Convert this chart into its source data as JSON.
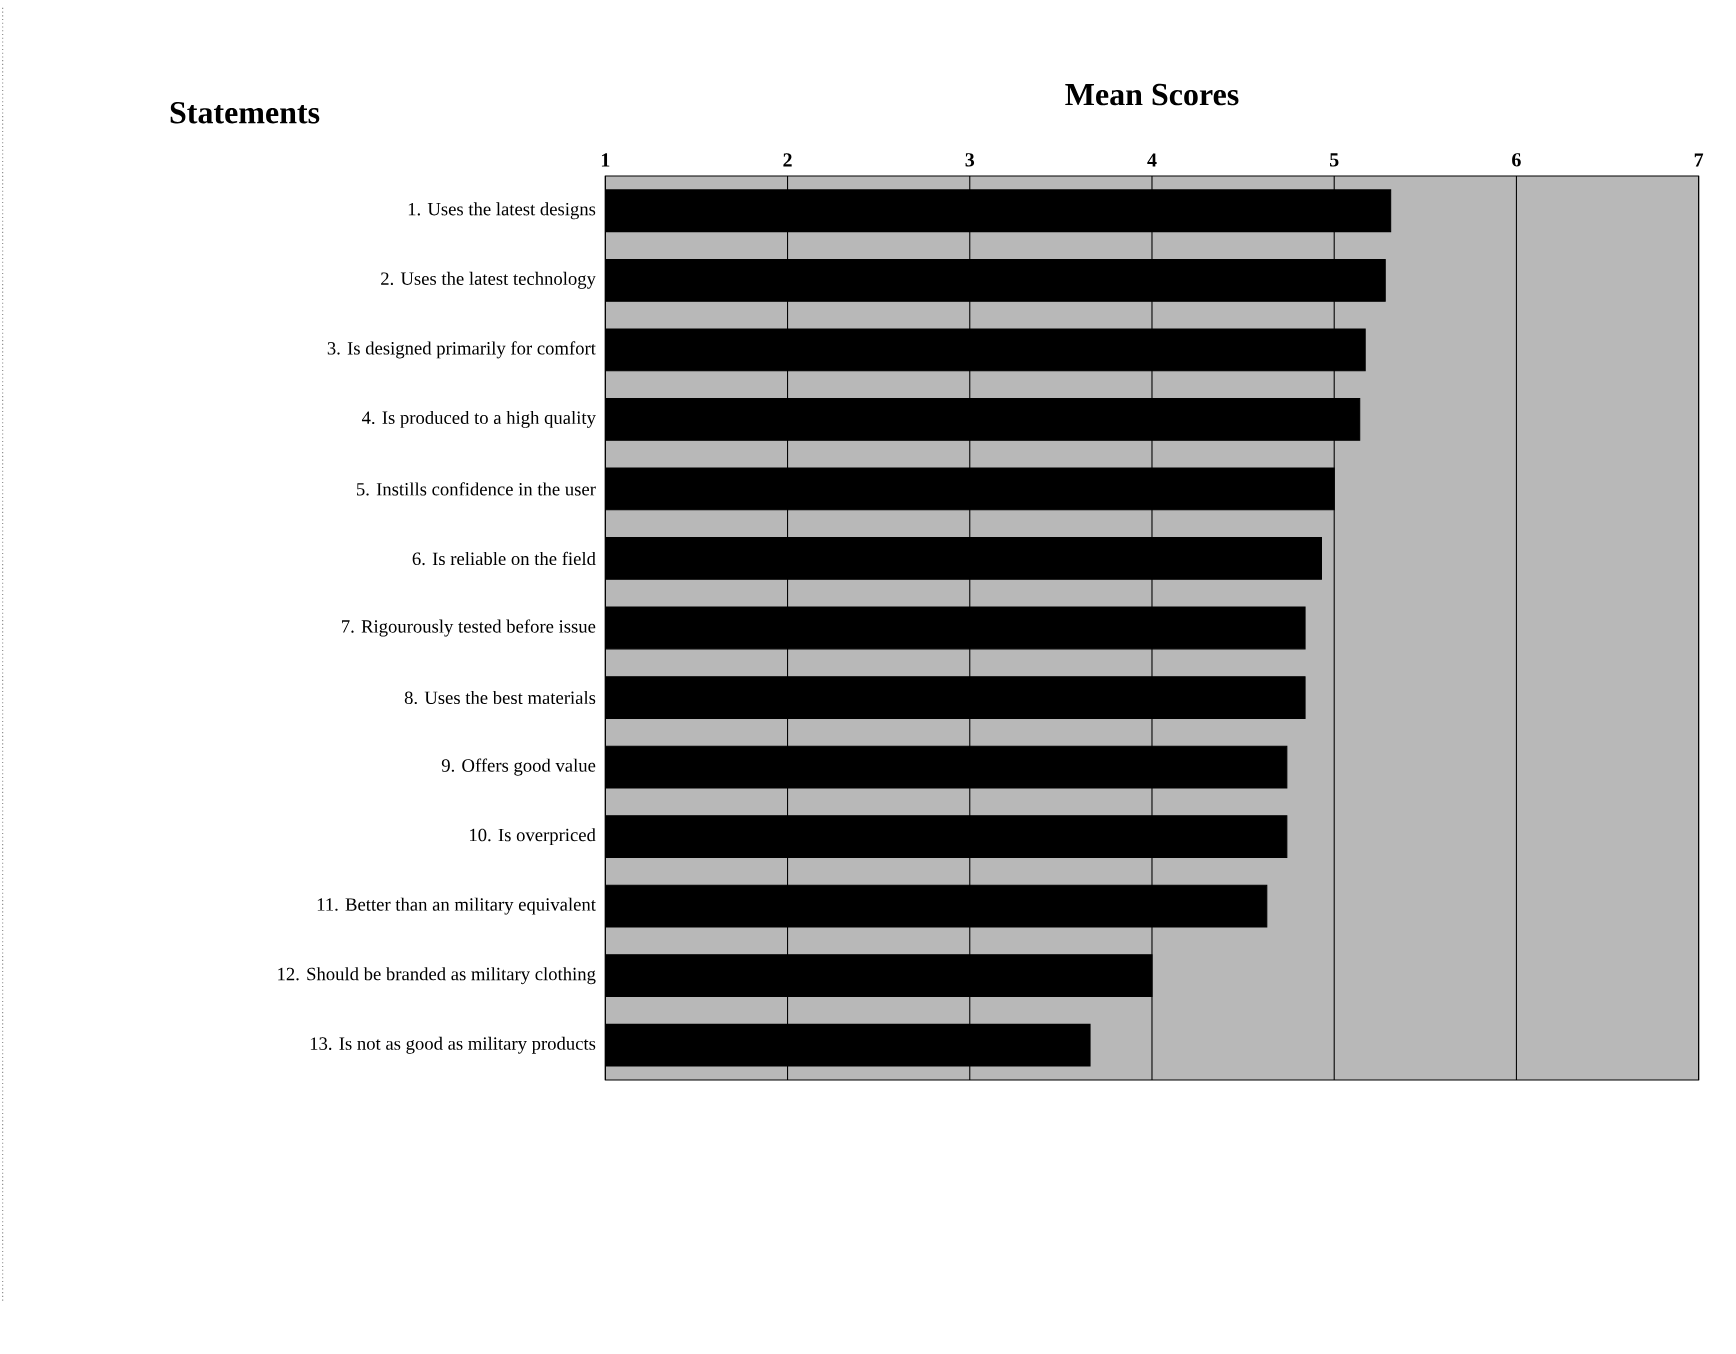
{
  "chart_data": {
    "type": "bar",
    "orientation": "horizontal",
    "title": "Mean Scores",
    "ylabel": "Statements",
    "categories": [
      "1. Uses the latest designs",
      "2. Uses the latest technology",
      "3. Is designed primarily for comfort",
      "4. Is produced to a high quality",
      "5. Instills confidence in the user",
      "6. Is reliable on the field",
      "7. Rigourously tested before issue",
      "8. Uses the best materials",
      "9. Offers good value",
      "10. Is overpriced",
      "11. Better than an military equivalent",
      "12. Should be branded as military clothing",
      "13. Is not as good as military products"
    ],
    "values": [
      5.31,
      5.28,
      5.17,
      5.14,
      5.0,
      4.93,
      4.84,
      4.84,
      4.74,
      4.74,
      4.63,
      4.0,
      3.66
    ],
    "color": "#000000",
    "xlim": [
      1,
      7
    ],
    "xticks": [
      1,
      2,
      3,
      4,
      5,
      6,
      7
    ],
    "grid": "x"
  }
}
